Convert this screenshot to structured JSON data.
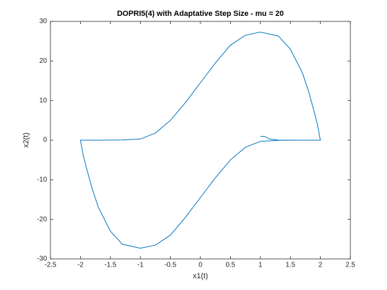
{
  "chart_data": {
    "type": "line",
    "title": "DOPRI5(4) with Adaptative Step Size - mu = 20",
    "xlabel": "x1(t)",
    "ylabel": "x2(t)",
    "x": [
      1,
      1.08,
      1.15,
      1.3,
      1.6,
      2,
      1.95,
      1.9,
      1.8,
      1.7,
      1.5,
      1.3,
      1.0,
      0.75,
      0.5,
      0.25,
      0,
      -0.25,
      -0.5,
      -0.75,
      -1,
      -1.3,
      -1.6,
      -2,
      -1.95,
      -1.9,
      -1.8,
      -1.7,
      -1.5,
      -1.3,
      -1.0,
      -0.75,
      -0.5,
      -0.25,
      0,
      0.25,
      0.5,
      0.75,
      1,
      1.3,
      1.6,
      2
    ],
    "series": [
      {
        "name": "x2",
        "color": "#0072bd",
        "values": [
          1,
          0.9,
          0.3,
          0,
          0,
          0,
          4,
          7,
          12.5,
          17,
          23,
          26.3,
          27.3,
          26.5,
          24,
          19.5,
          14.5,
          9.5,
          5,
          1.8,
          0.3,
          0.05,
          0,
          0,
          -4,
          -7,
          -12.5,
          -17,
          -23,
          -26.3,
          -27.3,
          -26.5,
          -24,
          -19.5,
          -14.5,
          -9.5,
          -5,
          -1.8,
          -0.3,
          -0.05,
          0,
          0
        ]
      }
    ],
    "xlim": [
      -2.5,
      2.5
    ],
    "ylim": [
      -30,
      30
    ],
    "xticks": [
      -2.5,
      -2,
      -1.5,
      -1,
      -0.5,
      0,
      0.5,
      1,
      1.5,
      2,
      2.5
    ],
    "yticks": [
      -30,
      -20,
      -10,
      0,
      10,
      20,
      30
    ],
    "grid": false
  }
}
